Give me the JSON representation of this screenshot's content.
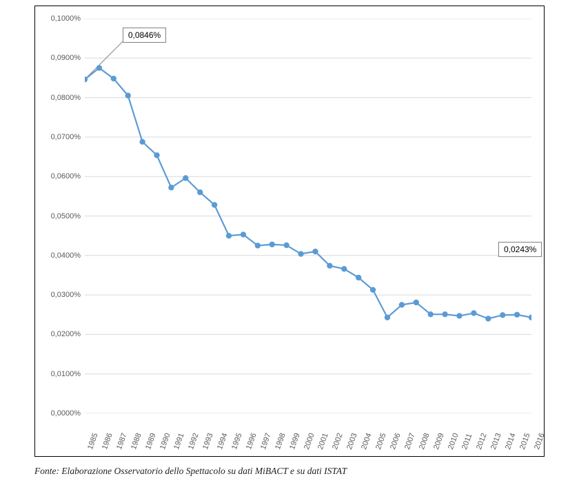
{
  "source_line": "Fonte: Elaborazione Osservatorio dello Spettacolo su dati MiBACT e su dati ISTAT",
  "chart": {
    "type": "line",
    "line_color": "#5b9bd5",
    "marker_color": "#5b9bd5",
    "marker_radius": 4.2,
    "line_width": 2.2,
    "background_color": "#ffffff",
    "grid_color": "#d9d9d9",
    "border_color": "#000000",
    "ylim": [
      0.0,
      0.1
    ],
    "ytick_step": 0.01,
    "ytick_labels": [
      "0,0000%",
      "0,0100%",
      "0,0200%",
      "0,0300%",
      "0,0400%",
      "0,0500%",
      "0,0600%",
      "0,0700%",
      "0,0800%",
      "0,0900%",
      "0,1000%"
    ],
    "years": [
      "1985",
      "1986",
      "1987",
      "1988",
      "1989",
      "1990",
      "1991",
      "1992",
      "1993",
      "1994",
      "1995",
      "1996",
      "1997",
      "1998",
      "1999",
      "2000",
      "2001",
      "2002",
      "2003",
      "2004",
      "2005",
      "2006",
      "2007",
      "2008",
      "2009",
      "2010",
      "2011",
      "2012",
      "2013",
      "2014",
      "2015",
      "2016"
    ],
    "values": [
      0.0846,
      0.0875,
      0.0848,
      0.0805,
      0.0688,
      0.0654,
      0.0572,
      0.0596,
      0.056,
      0.0528,
      0.045,
      0.0453,
      0.0425,
      0.0428,
      0.0426,
      0.0404,
      0.041,
      0.0374,
      0.0366,
      0.0344,
      0.0313,
      0.0243,
      0.0275,
      0.0281,
      0.0251,
      0.0251,
      0.0247,
      0.0254,
      0.024,
      0.0249,
      0.025,
      0.0243
    ],
    "callouts": [
      {
        "label": "0,0846%",
        "index": 0
      },
      {
        "label": "0,0243%",
        "index": 31
      }
    ],
    "tick_fontsize": 11,
    "callout_border": "#808080",
    "xlabel_rotation_deg": -70
  }
}
